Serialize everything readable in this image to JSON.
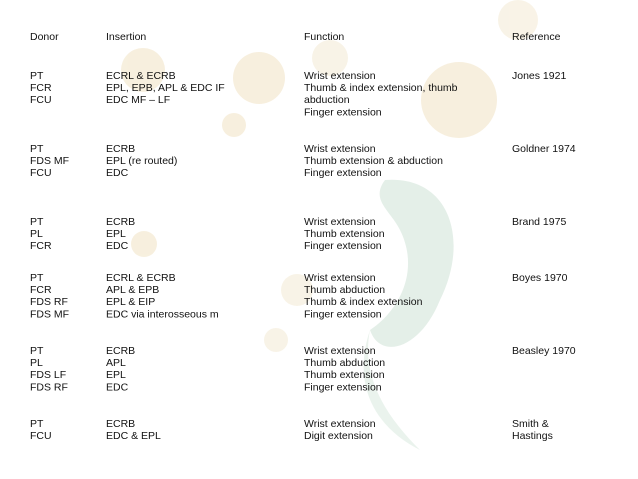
{
  "table": {
    "header": [
      "Donor",
      "Insertion",
      "Function",
      "Reference"
    ],
    "rows": [
      [
        [
          "PT",
          "FCR",
          "FCU"
        ],
        [
          "ECRL & ECRB",
          "EPL, EPB, APL & EDC IF",
          "EDC MF – LF"
        ],
        [
          "Wrist extension",
          "Thumb & index extension, thumb",
          "abduction",
          "Finger extension"
        ],
        [
          "Jones 1921"
        ]
      ],
      [
        [
          "PT",
          "FDS MF",
          "FCU"
        ],
        [
          "ECRB",
          "EPL (re routed)",
          "EDC"
        ],
        [
          "Wrist extension",
          "Thumb extension & abduction",
          "Finger extension"
        ],
        [
          "Goldner 1974"
        ]
      ],
      [
        [
          "PT",
          "PL",
          "FCR"
        ],
        [
          "ECRB",
          "EPL",
          "EDC"
        ],
        [
          "Wrist extension",
          "Thumb extension",
          "Finger extension"
        ],
        [
          "Brand 1975"
        ]
      ],
      [
        [
          "PT",
          "FCR",
          "FDS RF",
          "FDS MF"
        ],
        [
          "ECRL & ECRB",
          "APL & EPB",
          "EPL & EIP",
          "EDC via interosseous m"
        ],
        [
          "Wrist extension",
          "Thumb abduction",
          "Thumb & index extension",
          "Finger extension"
        ],
        [
          "Boyes 1970"
        ]
      ],
      [
        [
          "PT",
          "PL",
          "FDS LF",
          "FDS RF"
        ],
        [
          "ECRB",
          "APL",
          "EPL",
          "EDC"
        ],
        [
          "Wrist extension",
          "Thumb abduction",
          "Thumb extension",
          "Finger extension"
        ],
        [
          "Beasley 1970"
        ]
      ],
      [
        [
          "PT",
          "FCU"
        ],
        [
          "ECRB",
          "EDC & EPL"
        ],
        [
          "Wrist extension",
          "Digit extension"
        ],
        [
          "Smith &",
          "Hastings"
        ]
      ]
    ]
  }
}
